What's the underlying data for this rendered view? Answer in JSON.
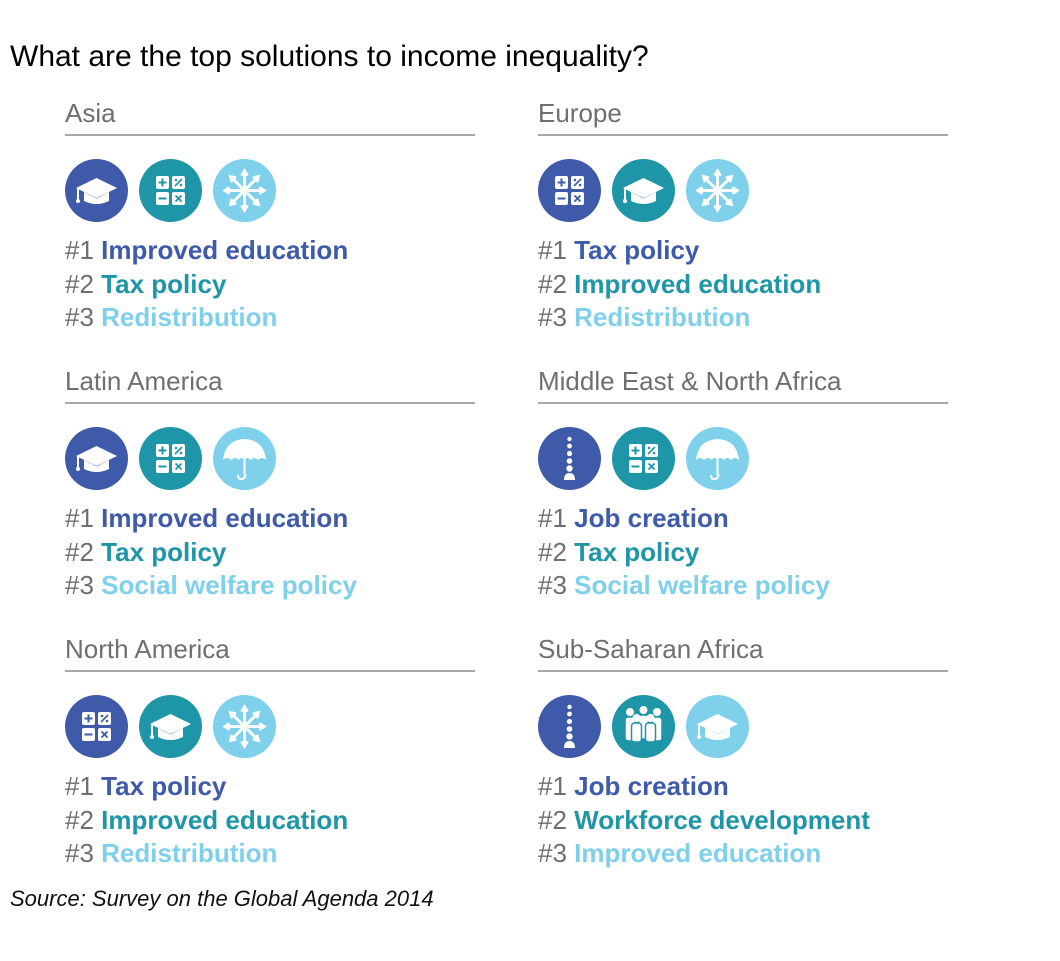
{
  "title": "What are the top solutions to income inequality?",
  "source": "Source: Survey on the Global Agenda 2014",
  "colors": {
    "dark": "#3e5aa8",
    "mid": "#1e96a8",
    "light": "#7fd0ea",
    "rank_number": "#6e6e73",
    "divider": "#a8a8ad"
  },
  "regions": [
    {
      "name": "Asia",
      "icons": [
        "graduation-cap-icon",
        "calculator-icon",
        "redistribution-icon"
      ],
      "ranks": [
        {
          "num": "#1",
          "label": "Improved education"
        },
        {
          "num": "#2",
          "label": "Tax policy"
        },
        {
          "num": "#3",
          "label": "Redistribution"
        }
      ]
    },
    {
      "name": "Europe",
      "icons": [
        "calculator-icon",
        "graduation-cap-icon",
        "redistribution-icon"
      ],
      "ranks": [
        {
          "num": "#1",
          "label": "Tax policy"
        },
        {
          "num": "#2",
          "label": "Improved education"
        },
        {
          "num": "#3",
          "label": "Redistribution"
        }
      ]
    },
    {
      "name": "Latin America",
      "icons": [
        "graduation-cap-icon",
        "calculator-icon",
        "umbrella-icon"
      ],
      "ranks": [
        {
          "num": "#1",
          "label": "Improved education"
        },
        {
          "num": "#2",
          "label": "Tax policy"
        },
        {
          "num": "#3",
          "label": "Social welfare policy"
        }
      ]
    },
    {
      "name": "Middle East & North Africa",
      "icons": [
        "job-ladder-icon",
        "calculator-icon",
        "umbrella-icon"
      ],
      "ranks": [
        {
          "num": "#1",
          "label": "Job creation"
        },
        {
          "num": "#2",
          "label": "Tax policy"
        },
        {
          "num": "#3",
          "label": "Social welfare policy"
        }
      ]
    },
    {
      "name": "North America",
      "icons": [
        "calculator-icon",
        "graduation-cap-icon",
        "redistribution-icon"
      ],
      "ranks": [
        {
          "num": "#1",
          "label": "Tax policy"
        },
        {
          "num": "#2",
          "label": "Improved education"
        },
        {
          "num": "#3",
          "label": "Redistribution"
        }
      ]
    },
    {
      "name": "Sub-Saharan Africa",
      "icons": [
        "job-ladder-icon",
        "workforce-icon",
        "graduation-cap-icon"
      ],
      "ranks": [
        {
          "num": "#1",
          "label": "Job creation"
        },
        {
          "num": "#2",
          "label": "Workforce development"
        },
        {
          "num": "#3",
          "label": "Improved education"
        }
      ]
    }
  ]
}
